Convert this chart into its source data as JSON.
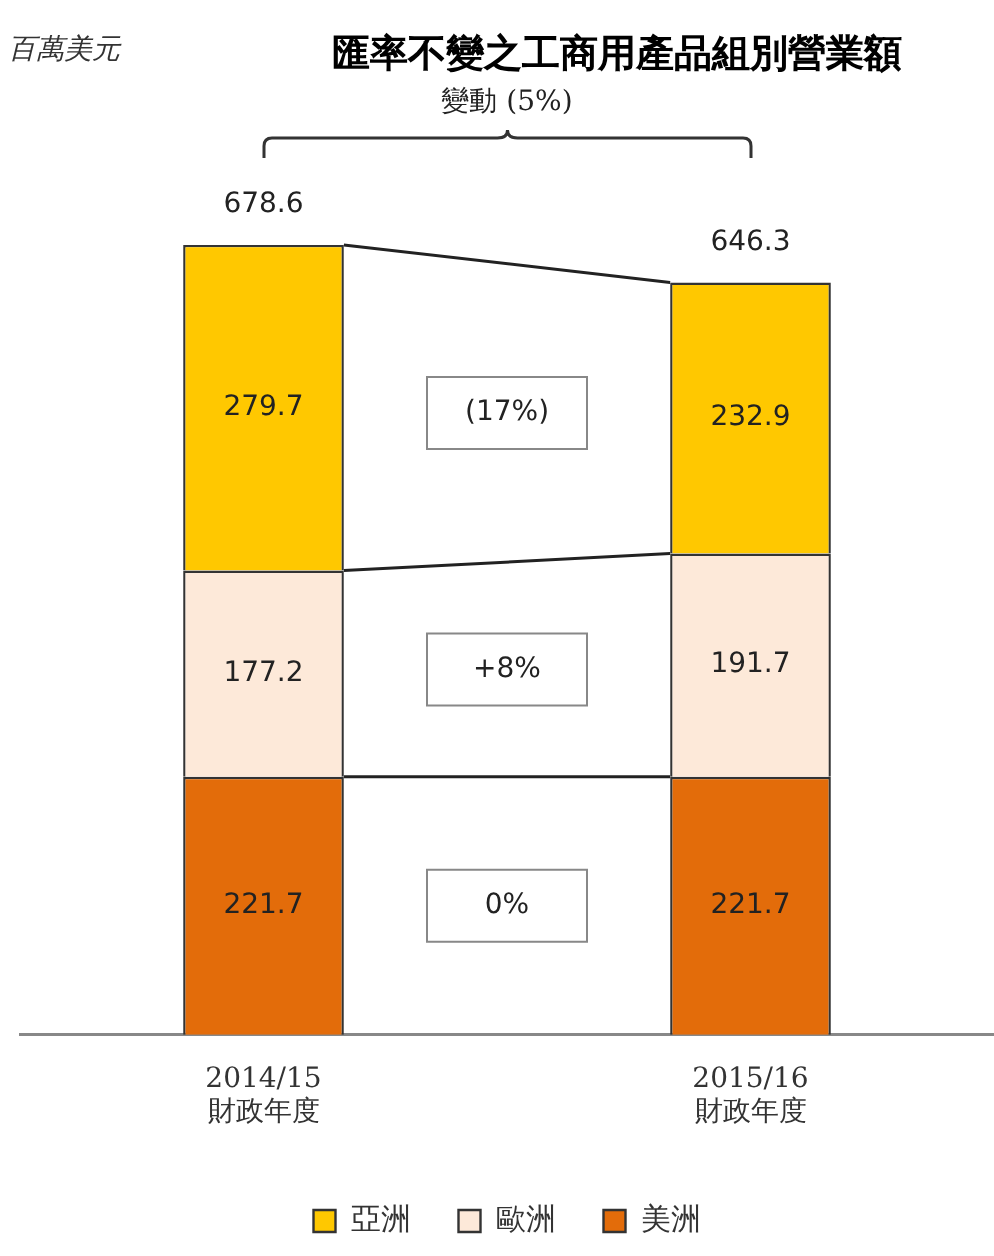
{
  "chart_data": {
    "type": "bar",
    "title": "匯率不變之工商用產品組別營業額",
    "categories": [
      "2014/15\n財政年度",
      "2015/16\n財政年度"
    ],
    "series": [
      {
        "name": "美洲",
        "color": "#e36c0a",
        "values": [
          221.7,
          221.7
        ]
      },
      {
        "name": "歐洲",
        "color": "#fde9d9",
        "values": [
          177.2,
          191.7
        ]
      },
      {
        "name": "亞洲",
        "color": "#ffc800",
        "values": [
          279.7,
          232.9
        ]
      }
    ],
    "stacked": true,
    "data_labels": true,
    "totals": [
      "678.6",
      "646.3"
    ],
    "tick_labels": "x",
    "grid": false,
    "legend": "bottom",
    "annotations": [
      "百萬美元",
      "變動 (5%)",
      "(17%)",
      "+8%",
      "0%"
    ]
  }
}
